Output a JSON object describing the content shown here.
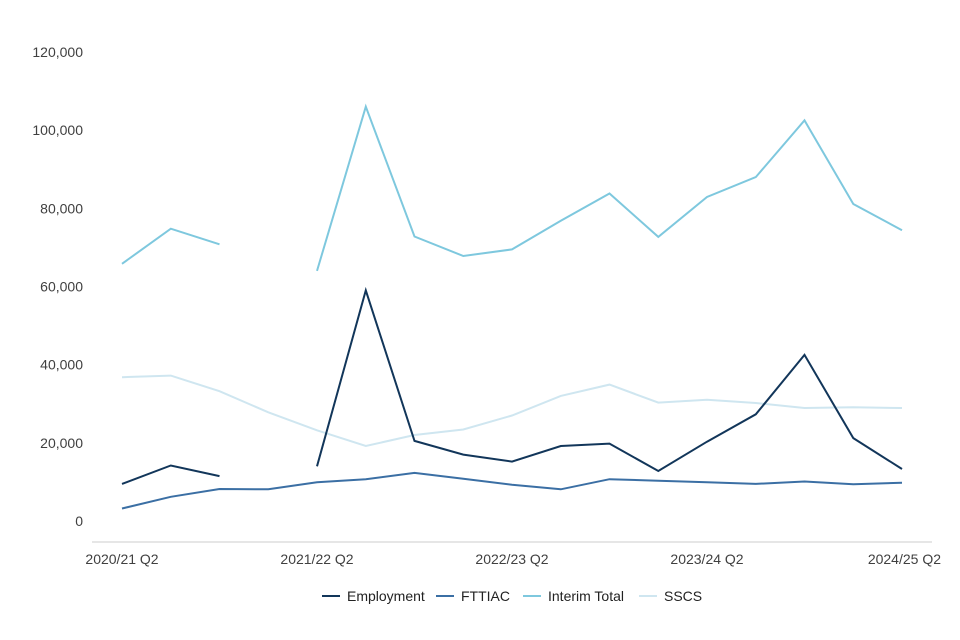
{
  "chart_data": {
    "type": "line",
    "title": "",
    "xlabel": "",
    "ylabel": "",
    "ylim": [
      0,
      120000
    ],
    "yticks": [
      0,
      20000,
      40000,
      60000,
      80000,
      100000,
      120000
    ],
    "ytick_labels": [
      "0",
      "20,000",
      "40,000",
      "60,000",
      "80,000",
      "100,000",
      "120,000"
    ],
    "categories": [
      "2020/21 Q2",
      "2020/21 Q3",
      "2020/21 Q4",
      "2021/22 Q1",
      "2021/22 Q2",
      "2021/22 Q3",
      "2021/22 Q4",
      "2022/23 Q1",
      "2022/23 Q2",
      "2022/23 Q3",
      "2022/23 Q4",
      "2023/24 Q1",
      "2023/24 Q2",
      "2023/24 Q3",
      "2023/24 Q4",
      "2024/25 Q1",
      "2024/25 Q2"
    ],
    "xtick_labels": [
      {
        "index": 0,
        "label": "2020/21 Q2"
      },
      {
        "index": 4,
        "label": "2021/22 Q2"
      },
      {
        "index": 8,
        "label": "2022/23 Q2"
      },
      {
        "index": 12,
        "label": "2023/24 Q2"
      },
      {
        "index": 16,
        "label": "2024/25 Q2"
      }
    ],
    "grid": false,
    "legend_position": "bottom",
    "series": [
      {
        "name": "Employment",
        "color": "#12365a",
        "values": [
          9500,
          14200,
          11500,
          null,
          14000,
          59000,
          20500,
          17000,
          15200,
          19200,
          19800,
          12800,
          20300,
          27300,
          42500,
          21200,
          13300
        ]
      },
      {
        "name": "FTTIAC",
        "color": "#3b6fa4",
        "values": [
          3200,
          6200,
          8200,
          8100,
          9900,
          10700,
          12300,
          10800,
          9300,
          8100,
          10700,
          10300,
          9900,
          9500,
          10100,
          9400,
          9800
        ]
      },
      {
        "name": "Interim Total",
        "color": "#7ec8de",
        "values": [
          65800,
          74800,
          70800,
          null,
          64000,
          106000,
          72800,
          67800,
          69500,
          76800,
          83800,
          72700,
          82900,
          88000,
          102500,
          81100,
          74400
        ]
      },
      {
        "name": "SSCS",
        "color": "#cfe6f0",
        "values": [
          36800,
          37200,
          33200,
          27800,
          23200,
          19200,
          22000,
          23400,
          27000,
          32000,
          34900,
          30300,
          31000,
          30200,
          28900,
          29100,
          28900
        ]
      }
    ]
  }
}
